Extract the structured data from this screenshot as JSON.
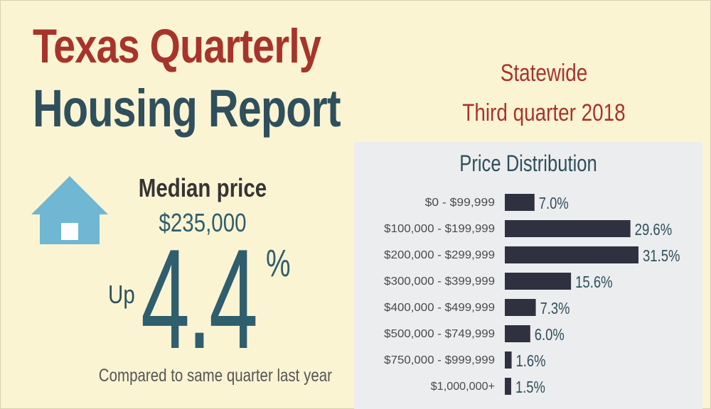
{
  "header": {
    "title_line1": "Texas Quarterly",
    "title_line2": "Housing Report",
    "region": "Statewide",
    "period": "Third quarter 2018"
  },
  "median": {
    "label": "Median price",
    "value": "$235,000",
    "direction": "Up",
    "change_number": "4.4",
    "change_unit": "%",
    "comparison": "Compared to same quarter last year"
  },
  "colors": {
    "background": "#fbf4d3",
    "title_red": "#a7342b",
    "title_slate": "#2f4f5c",
    "accent_teal": "#2f5e6e",
    "house": "#6fb7d3",
    "bar": "#2f3140",
    "panel": "#ecedee"
  },
  "icons": {
    "house": "house-icon"
  },
  "chart_data": {
    "type": "bar",
    "orientation": "horizontal",
    "title": "Price Distribution",
    "categories": [
      "$0 - $99,999",
      "$100,000 - $199,999",
      "$200,000 - $299,999",
      "$300,000 - $399,999",
      "$400,000 - $499,999",
      "$500,000 - $749,999",
      "$750,000 - $999,999",
      "$1,000,000+"
    ],
    "values": [
      7.0,
      29.6,
      31.5,
      15.6,
      7.3,
      6.0,
      1.6,
      1.5
    ],
    "value_labels": [
      "7.0%",
      "29.6%",
      "31.5%",
      "15.6%",
      "7.3%",
      "6.0%",
      "1.6%",
      "1.5%"
    ],
    "xlim": [
      0,
      31.5
    ],
    "grid": false,
    "legend": "none"
  }
}
